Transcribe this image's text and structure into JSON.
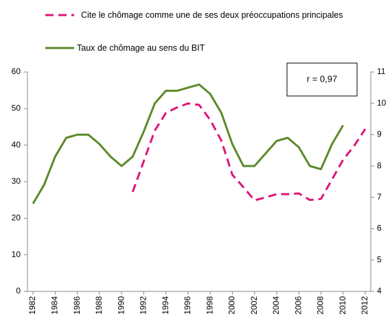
{
  "chart_data": {
    "type": "line",
    "annotation": "r = 0,97",
    "x": [
      1982,
      1983,
      1984,
      1985,
      1986,
      1987,
      1988,
      1989,
      1990,
      1991,
      1992,
      1993,
      1994,
      1995,
      1996,
      1997,
      1998,
      1999,
      2000,
      2001,
      2002,
      2003,
      2004,
      2005,
      2006,
      2007,
      2008,
      2009,
      2010,
      2011,
      2012
    ],
    "xlim": [
      1981.5,
      2012.5
    ],
    "xticks": [
      1982,
      1984,
      1986,
      1988,
      1990,
      1992,
      1994,
      1996,
      1998,
      2000,
      2002,
      2004,
      2006,
      2008,
      2010,
      2012
    ],
    "ylim": [
      0,
      60
    ],
    "yticks": [
      0,
      10,
      20,
      30,
      40,
      50,
      60
    ],
    "y2lim": [
      4,
      11
    ],
    "y2ticks": [
      4,
      5,
      6,
      7,
      8,
      9,
      10,
      11
    ],
    "series": [
      {
        "name": "Cite le chômage comme une de ses deux préoccupations principales",
        "color": "#e0157a",
        "dashed": true,
        "values": [
          null,
          null,
          null,
          null,
          null,
          null,
          null,
          null,
          null,
          27.2,
          35.6,
          44.0,
          48.8,
          50.3,
          51.4,
          51.0,
          46.9,
          41.3,
          31.9,
          28.5,
          24.9,
          25.7,
          26.6,
          26.6,
          26.8,
          25.0,
          25.3,
          30.6,
          36.0,
          39.8,
          44.4
        ]
      },
      {
        "name": "Taux de chômage au sens du BIT",
        "color": "#5b8a2a",
        "axis": "y2",
        "values": [
          6.8,
          7.4,
          8.3,
          8.9,
          9.0,
          9.0,
          8.7,
          8.3,
          8.0,
          8.3,
          9.1,
          10.0,
          10.4,
          10.4,
          10.5,
          10.6,
          10.3,
          9.7,
          8.7,
          8.0,
          8.0,
          8.4,
          8.8,
          8.9,
          8.6,
          8.0,
          7.9,
          8.7,
          9.3,
          null,
          null
        ]
      }
    ]
  }
}
